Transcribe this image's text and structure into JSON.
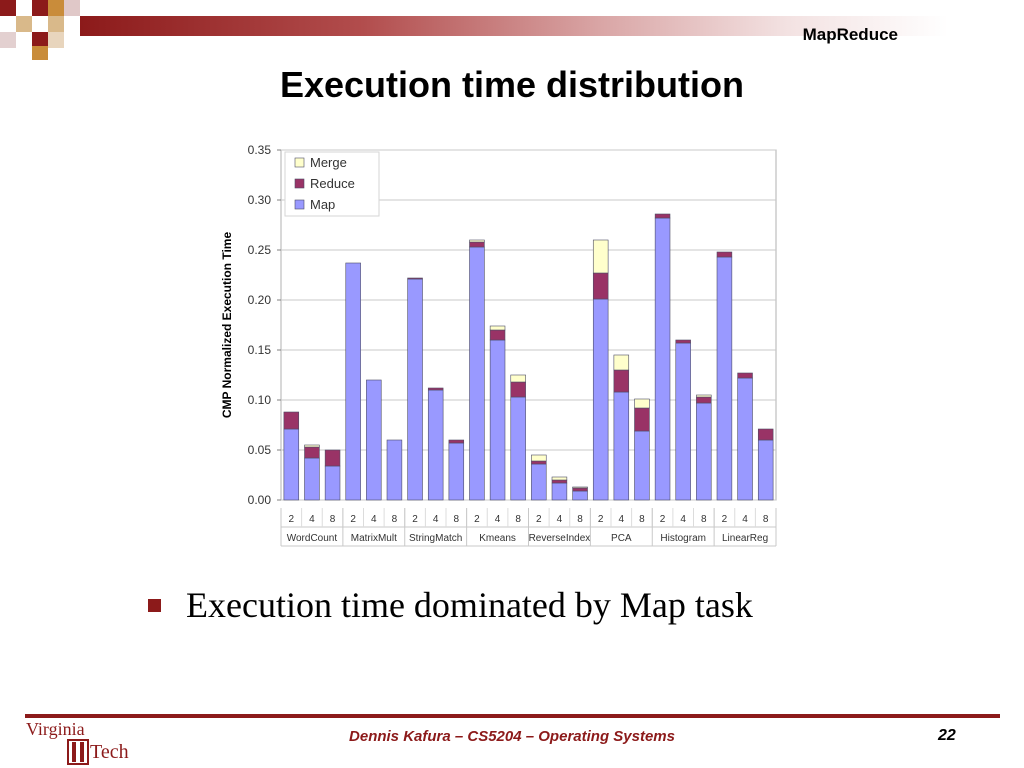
{
  "header": {
    "label": "MapReduce",
    "title": "Execution time distribution"
  },
  "bullets": [
    "Execution time dominated by Map task"
  ],
  "footer": {
    "credit": "Dennis Kafura – CS5204 – Operating Systems",
    "page": "22"
  },
  "logo": {
    "line1": "Virginia",
    "line2": "Tech"
  },
  "colors": {
    "brand": "#8c1a1a",
    "map": "#9999ff",
    "reduce": "#993366",
    "merge": "#ffffcc"
  },
  "chart_data": {
    "type": "bar",
    "stacked": true,
    "title": "",
    "xlabel": "",
    "ylabel": "CMP Normalized Execution Time",
    "ylim": [
      0,
      0.35
    ],
    "yticks": [
      "0.00",
      "0.05",
      "0.10",
      "0.15",
      "0.20",
      "0.25",
      "0.30",
      "0.35"
    ],
    "grid": true,
    "legend_position": "top-left",
    "groups": [
      {
        "name": "WordCount",
        "categories": [
          "2",
          "4",
          "8"
        ]
      },
      {
        "name": "MatrixMult",
        "categories": [
          "2",
          "4",
          "8"
        ]
      },
      {
        "name": "StringMatch",
        "categories": [
          "2",
          "4",
          "8"
        ]
      },
      {
        "name": "Kmeans",
        "categories": [
          "2",
          "4",
          "8"
        ]
      },
      {
        "name": "ReverseIndex",
        "categories": [
          "2",
          "4",
          "8"
        ]
      },
      {
        "name": "PCA",
        "categories": [
          "2",
          "4",
          "8"
        ]
      },
      {
        "name": "Histogram",
        "categories": [
          "2",
          "4",
          "8"
        ]
      },
      {
        "name": "LinearReg",
        "categories": [
          "2",
          "4",
          "8"
        ]
      }
    ],
    "series": [
      {
        "name": "Map",
        "color": "#9999ff",
        "values": [
          0.071,
          0.042,
          0.034,
          0.237,
          0.12,
          0.06,
          0.221,
          0.11,
          0.057,
          0.253,
          0.16,
          0.103,
          0.036,
          0.017,
          0.009,
          0.201,
          0.108,
          0.069,
          0.282,
          0.157,
          0.097,
          0.243,
          0.122,
          0.06
        ]
      },
      {
        "name": "Reduce",
        "color": "#993366",
        "values": [
          0.017,
          0.011,
          0.016,
          0.0,
          0.0,
          0.0,
          0.001,
          0.002,
          0.003,
          0.005,
          0.01,
          0.015,
          0.003,
          0.003,
          0.003,
          0.026,
          0.022,
          0.023,
          0.004,
          0.003,
          0.006,
          0.005,
          0.005,
          0.011
        ]
      },
      {
        "name": "Merge",
        "color": "#ffffcc",
        "values": [
          0.0,
          0.002,
          0.0,
          0.0,
          0.0,
          0.0,
          0.0,
          0.0,
          0.0,
          0.002,
          0.004,
          0.007,
          0.006,
          0.003,
          0.001,
          0.033,
          0.015,
          0.009,
          0.0,
          0.0,
          0.002,
          0.0,
          0.0,
          0.0
        ]
      }
    ]
  }
}
